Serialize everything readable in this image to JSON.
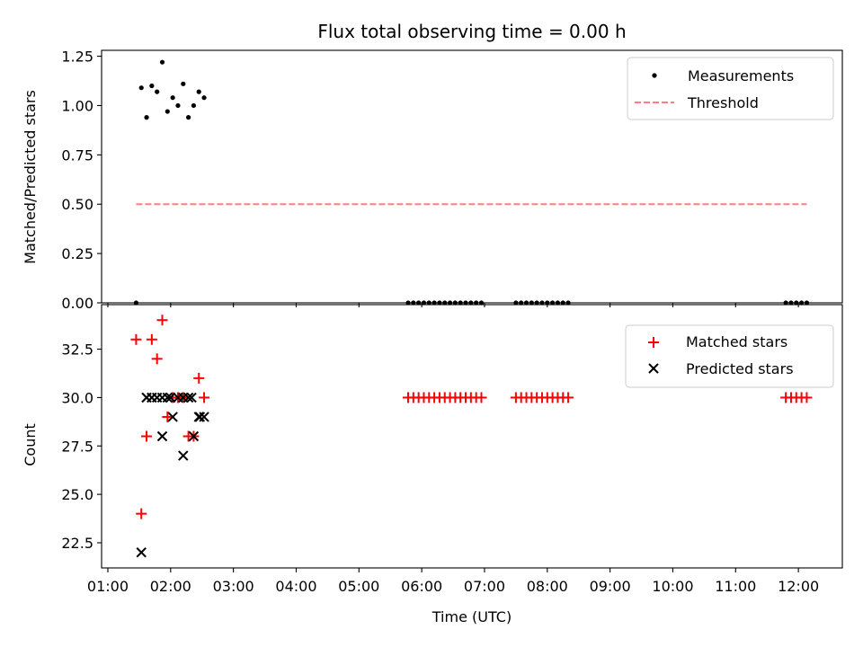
{
  "title": "Flux total observing time = 0.00 h",
  "colors": {
    "measurement": "#000000",
    "threshold": "#ff7f7f",
    "matched": "#ff0000",
    "predicted": "#000000"
  },
  "chart_data": [
    {
      "type": "scatter",
      "panel": "top",
      "xlabel": "",
      "ylabel": "Matched/Predicted stars",
      "ylim": [
        0,
        1.28
      ],
      "yticks": [
        "0.00",
        "0.25",
        "0.50",
        "0.75",
        "1.00",
        "1.25"
      ],
      "legend": "top-right",
      "series": [
        {
          "name": "Measurements",
          "marker": "dot",
          "x": [
            "01:27",
            "01:32",
            "01:37",
            "01:42",
            "01:47",
            "01:52",
            "01:57",
            "02:02",
            "02:07",
            "02:12",
            "02:17",
            "02:22",
            "02:27",
            "02:32",
            "05:47",
            "05:52",
            "05:57",
            "06:02",
            "06:07",
            "06:12",
            "06:17",
            "06:22",
            "06:27",
            "06:32",
            "06:37",
            "06:42",
            "06:47",
            "06:52",
            "06:57",
            "07:30",
            "07:35",
            "07:40",
            "07:45",
            "07:50",
            "07:55",
            "08:00",
            "08:05",
            "08:10",
            "08:15",
            "08:20",
            "11:48",
            "11:53",
            "11:58",
            "12:03",
            "12:08"
          ],
          "y": [
            0.0,
            1.09,
            0.94,
            1.1,
            1.07,
            1.22,
            0.97,
            1.04,
            1.0,
            1.11,
            0.94,
            1.0,
            1.07,
            1.04,
            0,
            0,
            0,
            0,
            0,
            0,
            0,
            0,
            0,
            0,
            0,
            0,
            0,
            0,
            0,
            0,
            0,
            0,
            0,
            0,
            0,
            0,
            0,
            0,
            0,
            0,
            0,
            0,
            0,
            0,
            0
          ]
        },
        {
          "name": "Threshold",
          "marker": "dashed-line",
          "x": [
            "01:27",
            "12:08"
          ],
          "y": [
            0.5,
            0.5
          ]
        }
      ]
    },
    {
      "type": "scatter",
      "panel": "bottom",
      "xlabel": "Time (UTC)",
      "ylabel": "Count",
      "ylim": [
        21.2,
        34.8
      ],
      "yticks": [
        "22.5",
        "25.0",
        "27.5",
        "30.0",
        "32.5"
      ],
      "xticks": [
        "01:00",
        "02:00",
        "03:00",
        "04:00",
        "05:00",
        "06:00",
        "07:00",
        "08:00",
        "09:00",
        "10:00",
        "11:00",
        "12:00"
      ],
      "legend": "top-right",
      "series": [
        {
          "name": "Matched stars",
          "marker": "plus",
          "x": [
            "01:27",
            "01:32",
            "01:37",
            "01:42",
            "01:47",
            "01:52",
            "01:57",
            "02:02",
            "02:07",
            "02:12",
            "02:17",
            "02:22",
            "02:27",
            "02:32",
            "05:47",
            "05:52",
            "05:57",
            "06:02",
            "06:07",
            "06:12",
            "06:17",
            "06:22",
            "06:27",
            "06:32",
            "06:37",
            "06:42",
            "06:47",
            "06:52",
            "06:57",
            "07:30",
            "07:35",
            "07:40",
            "07:45",
            "07:50",
            "07:55",
            "08:00",
            "08:05",
            "08:10",
            "08:15",
            "08:20",
            "11:48",
            "11:53",
            "11:58",
            "12:03",
            "12:08"
          ],
          "y": [
            33,
            24,
            28,
            33,
            32,
            34,
            29,
            30,
            30,
            30,
            28,
            28,
            31,
            30,
            30,
            30,
            30,
            30,
            30,
            30,
            30,
            30,
            30,
            30,
            30,
            30,
            30,
            30,
            30,
            30,
            30,
            30,
            30,
            30,
            30,
            30,
            30,
            30,
            30,
            30,
            30,
            30,
            30,
            30,
            30
          ]
        },
        {
          "name": "Predicted stars",
          "marker": "x",
          "x": [
            "01:32",
            "01:37",
            "01:42",
            "01:47",
            "01:52",
            "01:57",
            "02:02",
            "02:07",
            "02:12",
            "02:17",
            "02:22",
            "02:27",
            "02:32",
            "01:37",
            "01:42",
            "01:52",
            "02:00",
            "02:12",
            "02:20",
            "02:28"
          ],
          "y": [
            22,
            30,
            30,
            30,
            28,
            30,
            29,
            30,
            27,
            30,
            28,
            29,
            29,
            30,
            30,
            30,
            30,
            30,
            30,
            29
          ]
        }
      ]
    }
  ]
}
